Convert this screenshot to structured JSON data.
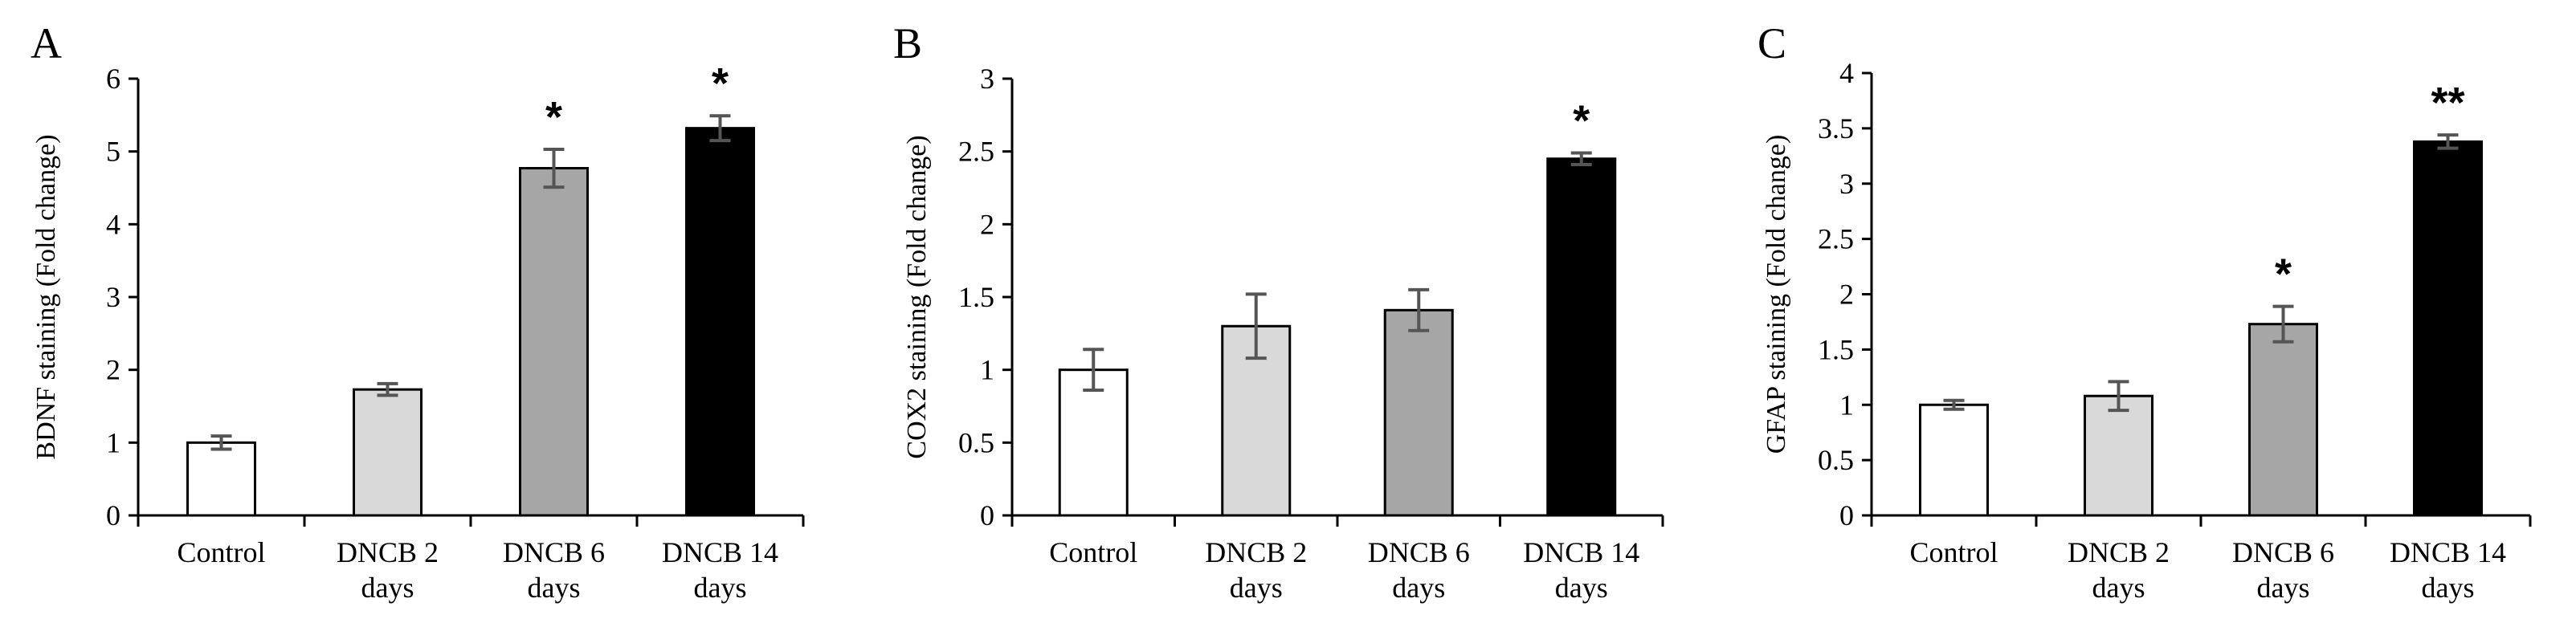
{
  "chart_data": [
    {
      "type": "bar",
      "panel": "A",
      "ylabel": "BDNF staining (Fold change)",
      "ylim": [
        0,
        6
      ],
      "yticks": [
        "0",
        "1",
        "2",
        "3",
        "4",
        "5",
        "6"
      ],
      "categories": [
        [
          "Control"
        ],
        [
          "DNCB 2",
          "days"
        ],
        [
          "DNCB 6",
          "days"
        ],
        [
          "DNCB 14",
          "days"
        ]
      ],
      "values": [
        1.0,
        1.73,
        4.77,
        5.32
      ],
      "errors": [
        0.09,
        0.08,
        0.26,
        0.17
      ],
      "significance": [
        "",
        "",
        "*",
        "*"
      ],
      "colors": [
        "#ffffff",
        "#d9d9d9",
        "#a6a6a6",
        "#000000"
      ]
    },
    {
      "type": "bar",
      "panel": "B",
      "ylabel": "COX2  staining (Fold change)",
      "ylim": [
        0,
        3
      ],
      "yticks": [
        "0",
        "0.5",
        "1",
        "1.5",
        "2",
        "2.5",
        "3"
      ],
      "categories": [
        [
          "Control"
        ],
        [
          "DNCB 2",
          "days"
        ],
        [
          "DNCB 6",
          "days"
        ],
        [
          "DNCB 14",
          "days"
        ]
      ],
      "values": [
        1.0,
        1.3,
        1.41,
        2.45
      ],
      "errors": [
        0.14,
        0.22,
        0.14,
        0.04
      ],
      "significance": [
        "",
        "",
        "",
        "*"
      ],
      "colors": [
        "#ffffff",
        "#d9d9d9",
        "#a6a6a6",
        "#000000"
      ]
    },
    {
      "type": "bar",
      "panel": "C",
      "ylabel": "GFAP  staining (Fold change)",
      "ylim": [
        0,
        4
      ],
      "yticks": [
        "0",
        "0.5",
        "1",
        "1.5",
        "2",
        "2.5",
        "3",
        "3.5",
        "4"
      ],
      "categories": [
        [
          "Control"
        ],
        [
          "DNCB 2",
          "days"
        ],
        [
          "DNCB 6",
          "days"
        ],
        [
          "DNCB 14",
          "days"
        ]
      ],
      "values": [
        1.0,
        1.08,
        1.73,
        3.38
      ],
      "errors": [
        0.04,
        0.13,
        0.16,
        0.06
      ],
      "significance": [
        "",
        "",
        "*",
        "**"
      ],
      "colors": [
        "#ffffff",
        "#d9d9d9",
        "#a6a6a6",
        "#000000"
      ]
    }
  ]
}
